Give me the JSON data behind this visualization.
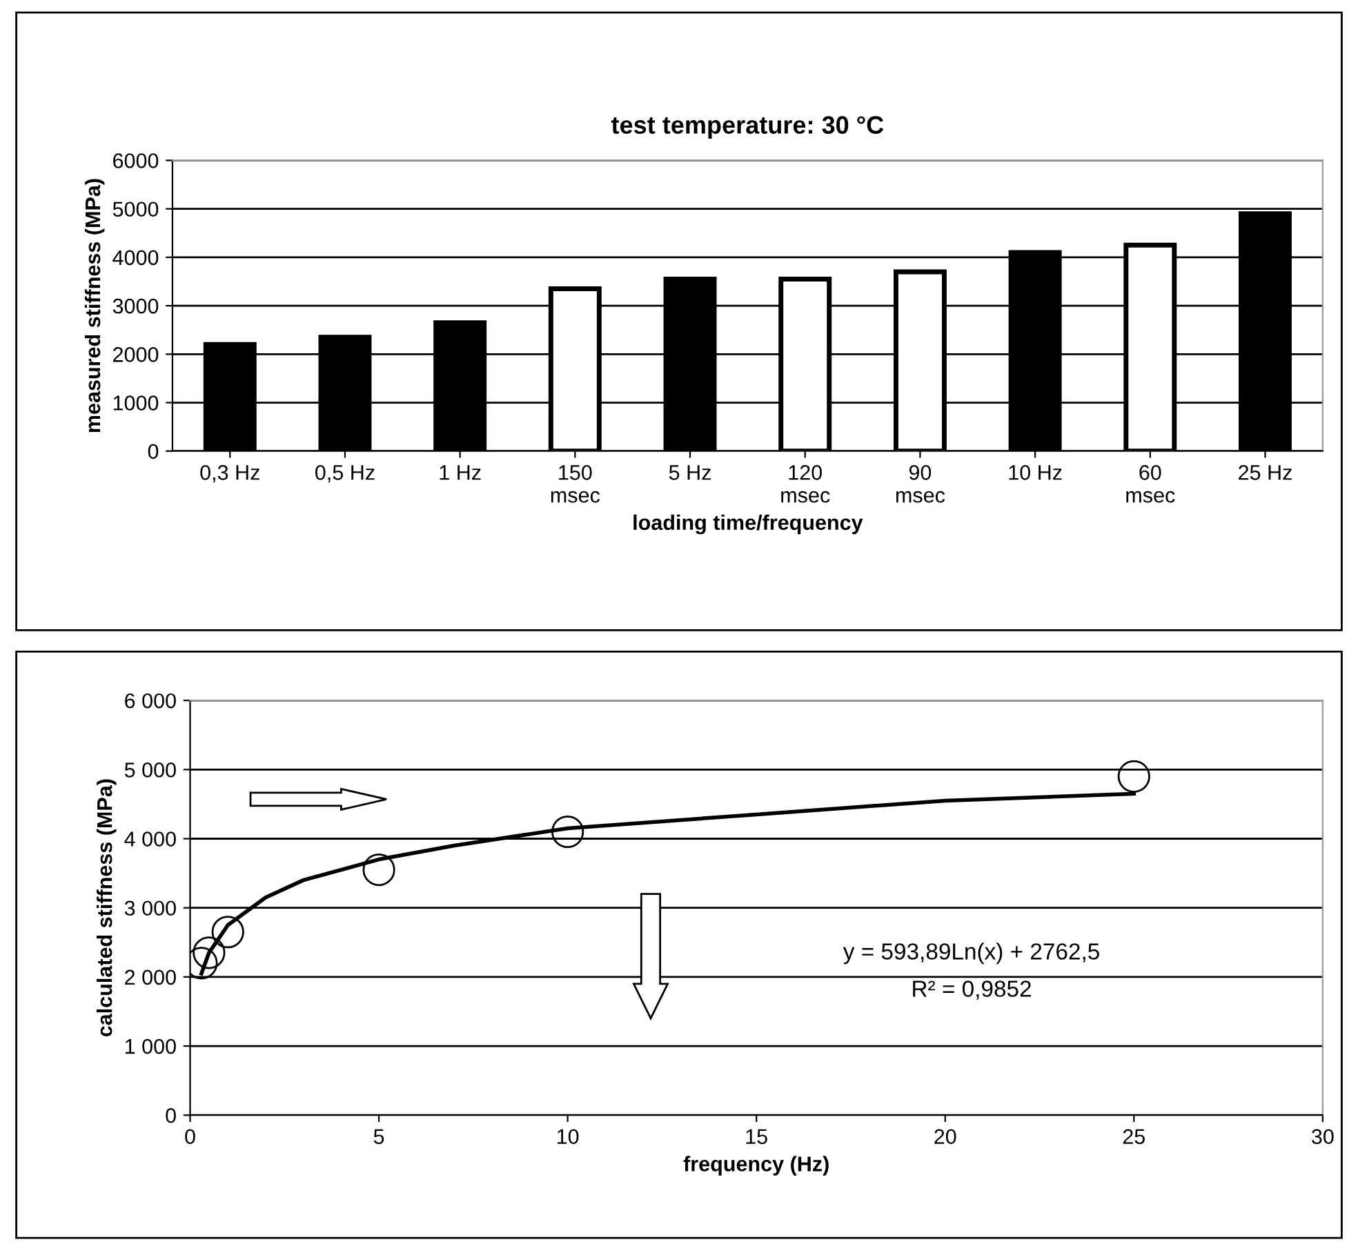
{
  "chart_data": [
    {
      "type": "bar",
      "title": "test temperature: 30 °C",
      "xlabel": "loading time/frequency",
      "ylabel": "measured stiffness (MPa)",
      "categories": [
        "0,3 Hz",
        "0,5 Hz",
        "1 Hz",
        "150\nmsec",
        "5 Hz",
        "120\nmsec",
        "90\nmsec",
        "10 Hz",
        "60\nmsec",
        "25 Hz"
      ],
      "values": [
        2200,
        2350,
        2650,
        3350,
        3550,
        3550,
        3700,
        4100,
        4250,
        4900
      ],
      "colors": [
        "#000000",
        "#000000",
        "#000000",
        "#ffffff",
        "#000000",
        "#ffffff",
        "#ffffff",
        "#000000",
        "#ffffff",
        "#000000"
      ],
      "ylim": [
        0,
        6000
      ],
      "yticks": [
        0,
        1000,
        2000,
        3000,
        4000,
        5000,
        6000
      ],
      "grid": "y",
      "legend": false
    },
    {
      "type": "scatter",
      "xlabel": "frequency (Hz)",
      "ylabel": "calculated stiffness (MPa)",
      "series": [
        {
          "type": "scatter",
          "color": "#000000",
          "marker": "circle",
          "x": [
            0.3,
            0.5,
            1,
            5,
            10,
            25
          ],
          "values": [
            2200,
            2350,
            2650,
            3550,
            4100,
            4900
          ]
        },
        {
          "type": "line",
          "color": "#000000",
          "marker": "none",
          "line_style": "solid",
          "x": [
            0.3,
            0.5,
            1,
            2,
            3,
            5,
            7,
            10,
            15,
            20,
            25
          ],
          "values": [
            2050,
            2350,
            2750,
            3150,
            3400,
            3700,
            3900,
            4150,
            4350,
            4550,
            4650
          ]
        }
      ],
      "xlim": [
        0,
        30
      ],
      "xticks": [
        0,
        5,
        10,
        15,
        20,
        25,
        30
      ],
      "ylim": [
        0,
        6000
      ],
      "yticks": [
        {
          "value": 0,
          "label": "0"
        },
        {
          "value": 1000,
          "label": "1 000"
        },
        {
          "value": 2000,
          "label": "2 000"
        },
        {
          "value": 3000,
          "label": "3 000"
        },
        {
          "value": 4000,
          "label": "4 000"
        },
        {
          "value": 5000,
          "label": "5 000"
        },
        {
          "value": 6000,
          "label": "6 000"
        }
      ],
      "grid": "y",
      "legend": false,
      "annotations": [
        "y = 593,89Ln(x) + 2762,5",
        "R² = 0,9852"
      ]
    }
  ]
}
